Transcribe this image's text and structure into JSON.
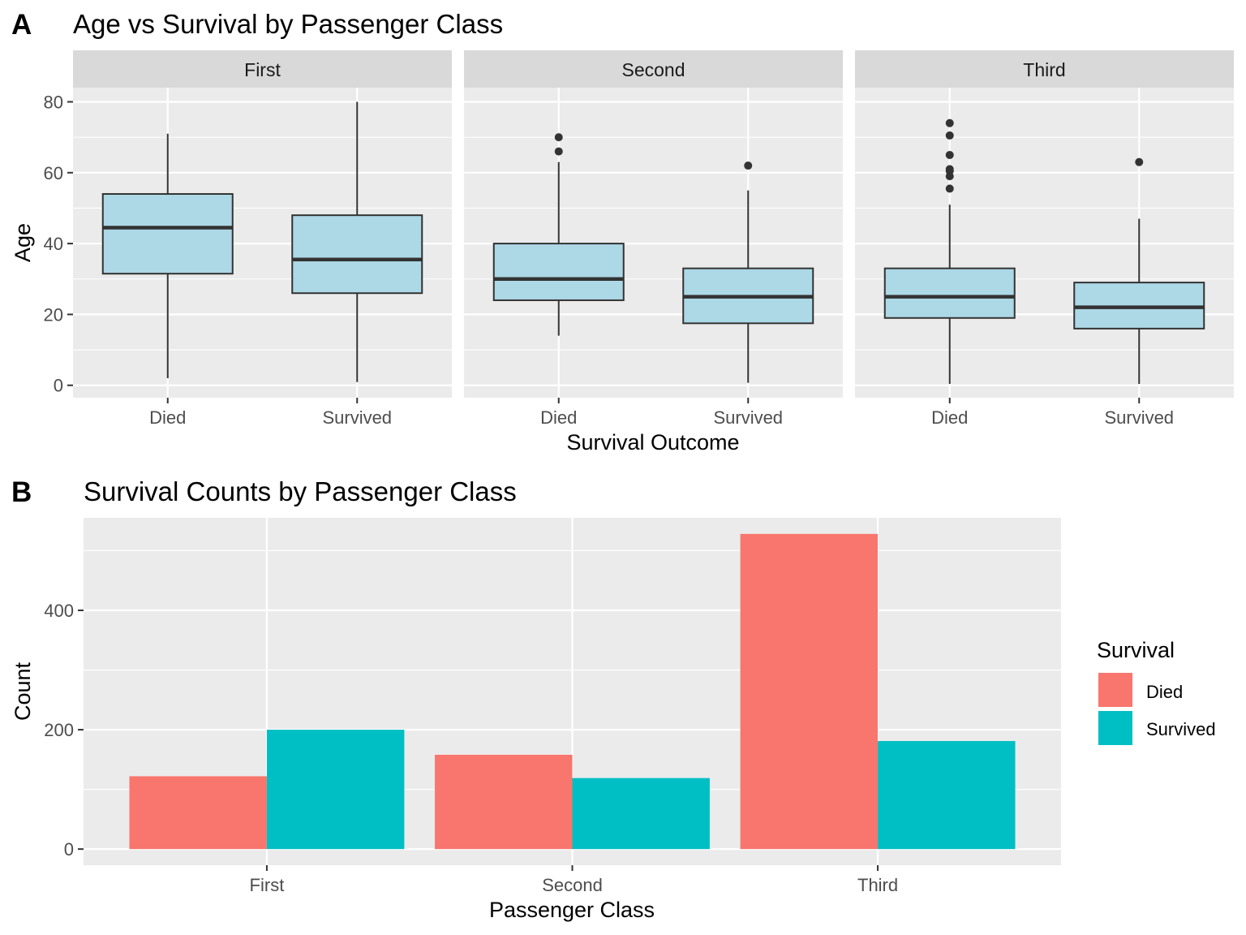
{
  "colors": {
    "box_fill": "#add8e6",
    "died": "#f8766d",
    "survived": "#00bfc4"
  },
  "chart_data": [
    {
      "type": "boxplot",
      "tag": "A",
      "title": "Age vs Survival by Passenger Class",
      "xlabel": "Survival Outcome",
      "ylabel": "Age",
      "ylim": [
        -3.5,
        84
      ],
      "yticks": [
        0,
        20,
        40,
        60,
        80
      ],
      "categories": [
        "Died",
        "Survived"
      ],
      "facets": [
        {
          "label": "First",
          "boxes": [
            {
              "category": "Died",
              "min": 2,
              "q1": 31.5,
              "median": 44.5,
              "q3": 54,
              "max": 71,
              "outliers": []
            },
            {
              "category": "Survived",
              "min": 0.9,
              "q1": 26,
              "median": 35.5,
              "q3": 48,
              "max": 80,
              "outliers": []
            }
          ]
        },
        {
          "label": "Second",
          "boxes": [
            {
              "category": "Died",
              "min": 14,
              "q1": 24,
              "median": 30,
              "q3": 40,
              "max": 63,
              "outliers": [
                66,
                70
              ]
            },
            {
              "category": "Survived",
              "min": 0.7,
              "q1": 17.5,
              "median": 25,
              "q3": 33,
              "max": 55,
              "outliers": [
                62
              ]
            }
          ]
        },
        {
          "label": "Third",
          "boxes": [
            {
              "category": "Died",
              "min": 0.4,
              "q1": 19,
              "median": 25,
              "q3": 33,
              "max": 51,
              "outliers": [
                55.5,
                59,
                60.5,
                61,
                65,
                70.5,
                74
              ]
            },
            {
              "category": "Survived",
              "min": 0.4,
              "q1": 16,
              "median": 22,
              "q3": 29,
              "max": 47,
              "outliers": [
                63
              ]
            }
          ]
        }
      ]
    },
    {
      "type": "bar",
      "tag": "B",
      "title": "Survival Counts by Passenger Class",
      "xlabel": "Passenger Class",
      "ylabel": "Count",
      "ylim": [
        -27,
        555
      ],
      "yticks": [
        0,
        200,
        400
      ],
      "categories": [
        "First",
        "Second",
        "Third"
      ],
      "series": [
        {
          "name": "Died",
          "values": [
            122,
            158,
            528
          ]
        },
        {
          "name": "Survived",
          "values": [
            200,
            119,
            181
          ]
        }
      ],
      "legend": {
        "title": "Survival",
        "position": "right"
      }
    }
  ]
}
